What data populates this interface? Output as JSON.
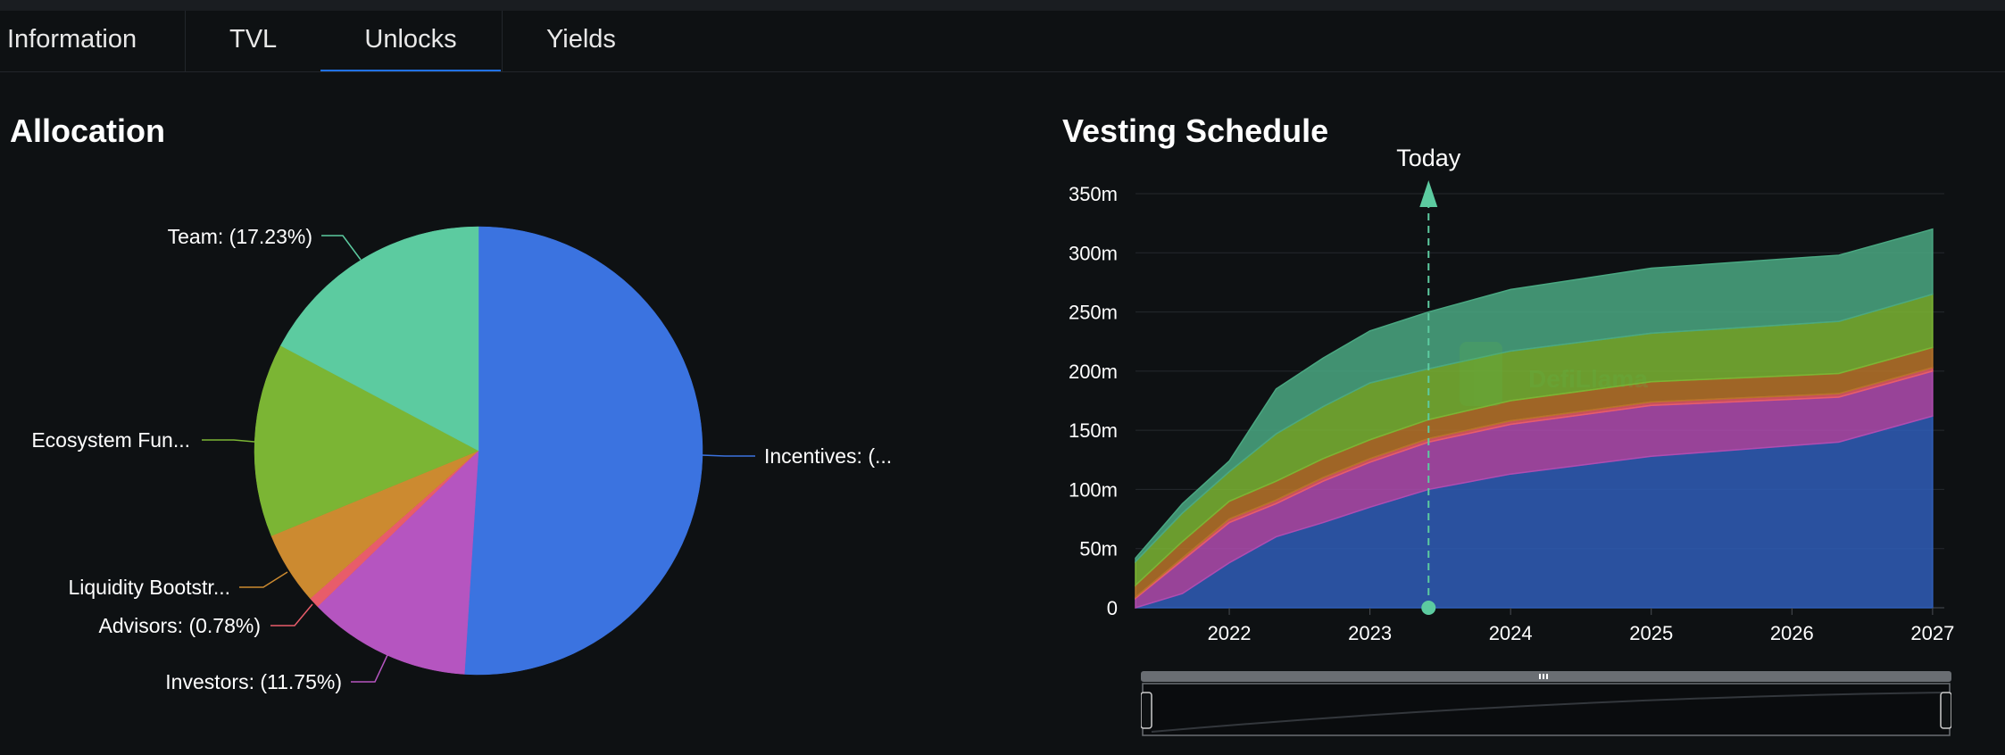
{
  "tabs": [
    {
      "label": "Information"
    },
    {
      "label": "TVL"
    },
    {
      "label": "Unlocks",
      "active": true
    },
    {
      "label": "Yields"
    }
  ],
  "allocation": {
    "title": "Allocation",
    "labels": {
      "team": "Team: (17.23%)",
      "ecosystem": "Ecosystem Fun...",
      "liquidity": "Liquidity Bootstr...",
      "advisors": "Advisors: (0.78%)",
      "investors": "Investors: (11.75%)",
      "incentives": "Incentives: (..."
    }
  },
  "vesting": {
    "title": "Vesting Schedule",
    "today_label": "Today",
    "watermark": "DefiLlama"
  },
  "chart_data": [
    {
      "type": "pie",
      "title": "Allocation",
      "slices": [
        {
          "label": "Incentives",
          "value": 51.0,
          "color": "#3b73e0"
        },
        {
          "label": "Investors",
          "value": 11.75,
          "color": "#b555c0"
        },
        {
          "label": "Advisors",
          "value": 0.78,
          "color": "#e85c6a"
        },
        {
          "label": "Liquidity Bootstrapping",
          "value": 5.26,
          "color": "#cc8a30"
        },
        {
          "label": "Ecosystem Fund",
          "value": 13.98,
          "color": "#7bb534"
        },
        {
          "label": "Team",
          "value": 17.23,
          "color": "#5ccba0"
        }
      ]
    },
    {
      "type": "area",
      "title": "Vesting Schedule",
      "stacked": true,
      "x": [
        "2021-05",
        "2021-09",
        "2022-01",
        "2022-05",
        "2022-09",
        "2023-01",
        "2023-06",
        "2024-01",
        "2025-01",
        "2026-05",
        "2027-01"
      ],
      "x_ticks": [
        "2022",
        "2023",
        "2024",
        "2025",
        "2026",
        "2027"
      ],
      "y_ticks": [
        "0",
        "50m",
        "100m",
        "150m",
        "200m",
        "250m",
        "300m",
        "350m"
      ],
      "ylim": [
        0,
        350
      ],
      "today": "2023-06",
      "series": [
        {
          "color": "#2f5db8",
          "values": [
            0,
            12,
            38,
            60,
            72,
            85,
            100,
            113,
            128,
            140,
            162
          ]
        },
        {
          "color": "#b04cb0",
          "values": [
            8,
            28,
            34,
            28,
            35,
            38,
            40,
            42,
            43,
            38,
            38
          ]
        },
        {
          "color": "#e85c6a",
          "values": [
            1,
            2,
            3,
            3,
            3,
            3,
            3,
            3,
            3,
            3,
            3
          ]
        },
        {
          "color": "#b8742a",
          "values": [
            10,
            14,
            15,
            16,
            16,
            16,
            16,
            17,
            17,
            17,
            17
          ]
        },
        {
          "color": "#7bb534",
          "values": [
            20,
            24,
            25,
            40,
            44,
            48,
            43,
            42,
            41,
            44,
            45
          ]
        },
        {
          "color": "#4aa882",
          "values": [
            3,
            8,
            9,
            38,
            41,
            44,
            48,
            52,
            55,
            56,
            55
          ]
        }
      ]
    }
  ]
}
